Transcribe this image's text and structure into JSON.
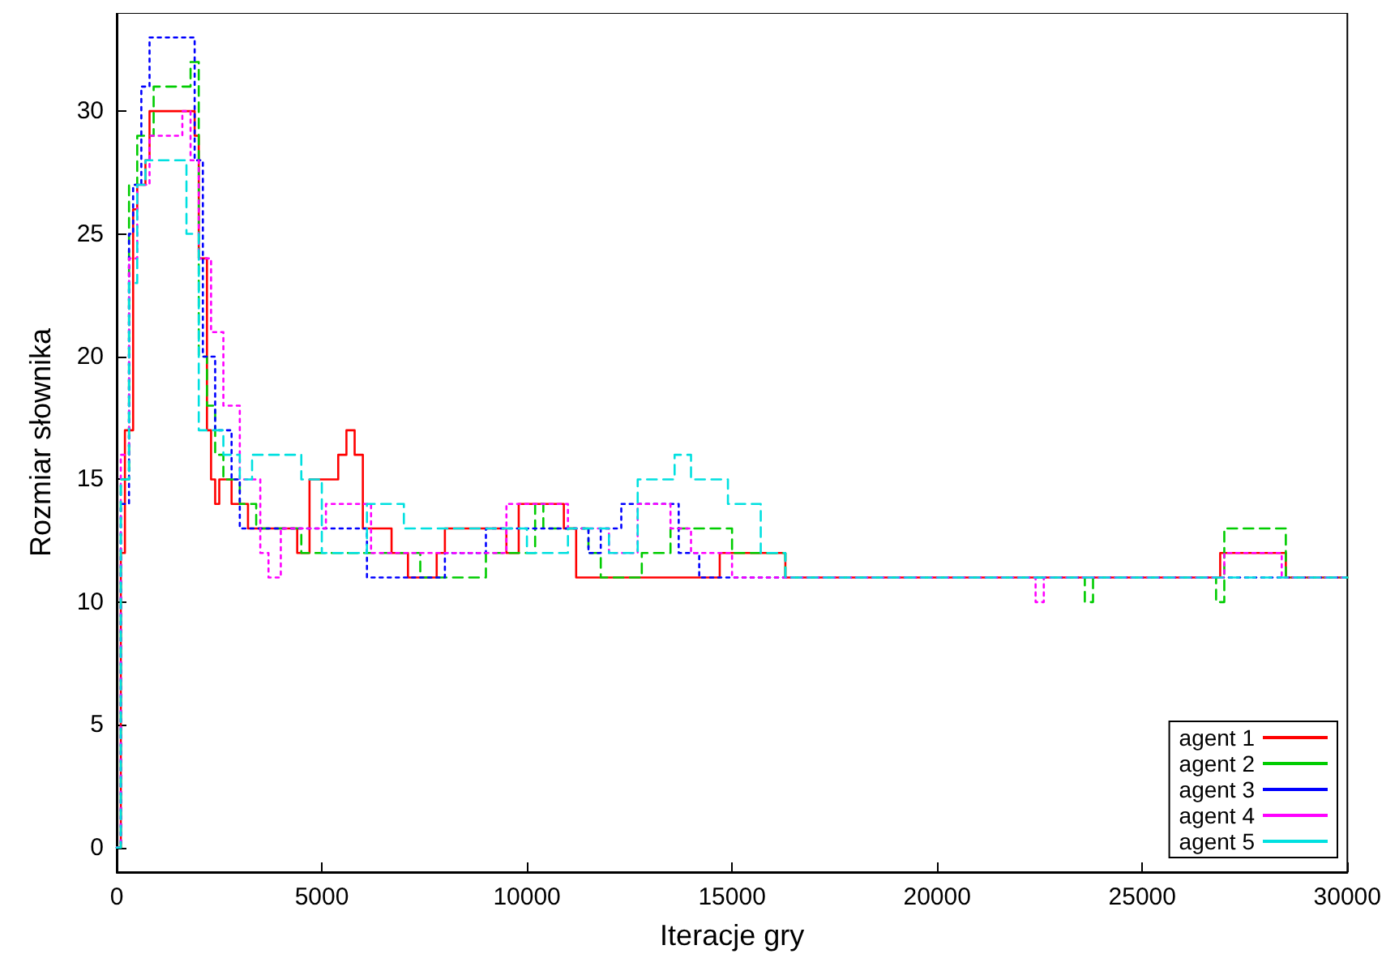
{
  "chart_data": {
    "type": "step",
    "xlabel": "Iteracje gry",
    "ylabel": "Rozmiar słownika",
    "xlim": [
      0,
      30000
    ],
    "ylim": [
      -1,
      34
    ],
    "xticks": [
      0,
      5000,
      10000,
      15000,
      20000,
      25000,
      30000
    ],
    "yticks": [
      0,
      5,
      10,
      15,
      20,
      25,
      30
    ],
    "grid": false,
    "legend": "bottom right",
    "marker": "none",
    "series": [
      {
        "name": "agent 1",
        "color": "#ff0000",
        "line_style": "solid",
        "x": [
          0,
          100,
          200,
          400,
          500,
          700,
          800,
          1800,
          1900,
          2000,
          2200,
          2300,
          2400,
          2500,
          2800,
          3200,
          4400,
          4700,
          5400,
          5600,
          5800,
          6000,
          6700,
          7100,
          7800,
          8000,
          9500,
          9800,
          10900,
          11200,
          14700,
          16300,
          26900,
          28500,
          30000
        ],
        "values": [
          0,
          12,
          17,
          26,
          27,
          28,
          30,
          30,
          29,
          24,
          17,
          15,
          14,
          15,
          14,
          13,
          12,
          15,
          16,
          17,
          16,
          13,
          12,
          11,
          12,
          13,
          12,
          14,
          13,
          11,
          12,
          11,
          12,
          11,
          11
        ]
      },
      {
        "name": "agent 2",
        "color": "#00cc00",
        "line_style": "dashed",
        "x": [
          0,
          100,
          300,
          500,
          900,
          1500,
          1800,
          2000,
          2200,
          2400,
          2600,
          3000,
          3400,
          4500,
          7400,
          9000,
          10200,
          10400,
          11500,
          11800,
          12800,
          13500,
          15000,
          16300,
          23600,
          23800,
          26800,
          27000,
          28500,
          30000
        ],
        "values": [
          0,
          15,
          27,
          29,
          31,
          31,
          32,
          20,
          18,
          16,
          15,
          14,
          13,
          12,
          11,
          12,
          14,
          13,
          12,
          11,
          12,
          13,
          12,
          11,
          10,
          11,
          10,
          13,
          11,
          11
        ]
      },
      {
        "name": "agent 3",
        "color": "#0000ff",
        "line_style": "dotted",
        "x": [
          0,
          100,
          300,
          400,
          600,
          800,
          1700,
          1900,
          2100,
          2400,
          2800,
          3000,
          4500,
          6100,
          8000,
          9000,
          11500,
          11800,
          12300,
          13700,
          14200,
          30000
        ],
        "values": [
          0,
          14,
          25,
          27,
          31,
          33,
          33,
          28,
          20,
          17,
          15,
          13,
          13,
          11,
          12,
          13,
          12,
          13,
          14,
          12,
          11,
          11
        ]
      },
      {
        "name": "agent 4",
        "color": "#ff00ff",
        "line_style": "dotted",
        "x": [
          0,
          100,
          300,
          500,
          800,
          1600,
          1800,
          2000,
          2300,
          2600,
          3000,
          3500,
          3700,
          4000,
          5100,
          6200,
          9500,
          11000,
          12000,
          12700,
          13500,
          14000,
          15000,
          22400,
          22600,
          27000,
          28400,
          30000
        ],
        "values": [
          0,
          16,
          24,
          27,
          29,
          30,
          28,
          24,
          21,
          18,
          15,
          12,
          11,
          13,
          14,
          12,
          14,
          13,
          12,
          14,
          13,
          12,
          11,
          10,
          11,
          12,
          11,
          11
        ]
      },
      {
        "name": "agent 5",
        "color": "#00e0e0",
        "line_style": "dashed",
        "x": [
          0,
          100,
          300,
          500,
          700,
          1700,
          2000,
          2600,
          3000,
          3300,
          4500,
          5000,
          6100,
          7000,
          10000,
          11000,
          12000,
          12700,
          13600,
          14000,
          14900,
          15700,
          16300,
          30000
        ],
        "values": [
          0,
          15,
          23,
          27,
          28,
          25,
          17,
          16,
          15,
          16,
          15,
          12,
          14,
          13,
          12,
          13,
          12,
          15,
          16,
          15,
          14,
          12,
          11,
          11
        ]
      }
    ]
  }
}
